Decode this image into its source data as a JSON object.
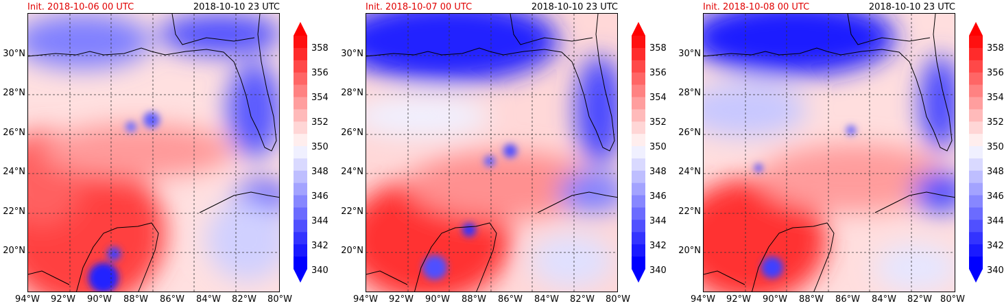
{
  "colors": {
    "accent_title": "#e00000",
    "colorbar_levels": [
      "#0000ff",
      "#1a1aff",
      "#3333ff",
      "#5050ff",
      "#6b6bff",
      "#8787ff",
      "#a3a3ff",
      "#bebeff",
      "#d9d9ff",
      "#f0f0ff",
      "#ffeeee",
      "#ffd6d6",
      "#ffbaba",
      "#ff9e9e",
      "#ff8282",
      "#ff6666",
      "#ff4848",
      "#ff2b2b",
      "#ff1010"
    ]
  },
  "axes": {
    "lon_labels": [
      "94°W",
      "92°W",
      "90°W",
      "88°W",
      "86°W",
      "84°W",
      "82°W",
      "80°W"
    ],
    "lat_labels": [
      "30°N",
      "28°N",
      "26°N",
      "24°N",
      "22°N",
      "20°N"
    ]
  },
  "colorbar": {
    "tick_labels": [
      "358",
      "356",
      "354",
      "352",
      "350",
      "348",
      "346",
      "344",
      "342",
      "340"
    ],
    "range": [
      340,
      358
    ],
    "extend": "both"
  },
  "panels": [
    {
      "init_label": "Init. 2018-10-06 00 UTC",
      "valid_label": "2018-10-10 23 UTC"
    },
    {
      "init_label": "Init. 2018-10-07 00 UTC",
      "valid_label": "2018-10-10 23 UTC"
    },
    {
      "init_label": "Init. 2018-10-08 00 UTC",
      "valid_label": "2018-10-10 23 UTC"
    }
  ]
}
